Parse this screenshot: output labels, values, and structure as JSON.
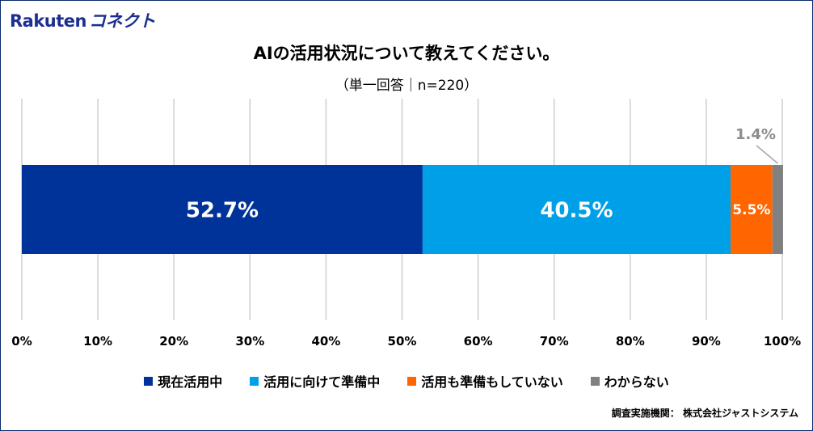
{
  "logo": {
    "brand": "Rakuten",
    "product": "コネクト"
  },
  "chart_data": {
    "type": "bar",
    "orientation": "horizontal",
    "stacked": true,
    "title": "AIの活用状況について教えてください。",
    "subtitle": "（単一回答｜n=220）",
    "categories": [
      ""
    ],
    "series": [
      {
        "name": "現在活用中",
        "values": [
          52.7
        ],
        "color": "#003399",
        "label": "52.7%"
      },
      {
        "name": "活用に向けて準備中",
        "values": [
          40.5
        ],
        "color": "#00a0e9",
        "label": "40.5%"
      },
      {
        "name": "活用も準備もしていない",
        "values": [
          5.5
        ],
        "color": "#ff6600",
        "label": "5.5%"
      },
      {
        "name": "わからない",
        "values": [
          1.4
        ],
        "color": "#808080",
        "label": "1.4%"
      }
    ],
    "xlim": [
      0,
      100
    ],
    "xticks": [
      "0%",
      "10%",
      "20%",
      "30%",
      "40%",
      "50%",
      "60%",
      "70%",
      "80%",
      "90%",
      "100%"
    ],
    "grid": true,
    "legend_position": "bottom"
  },
  "source": "調査実施機関： 株式会社ジャストシステム"
}
